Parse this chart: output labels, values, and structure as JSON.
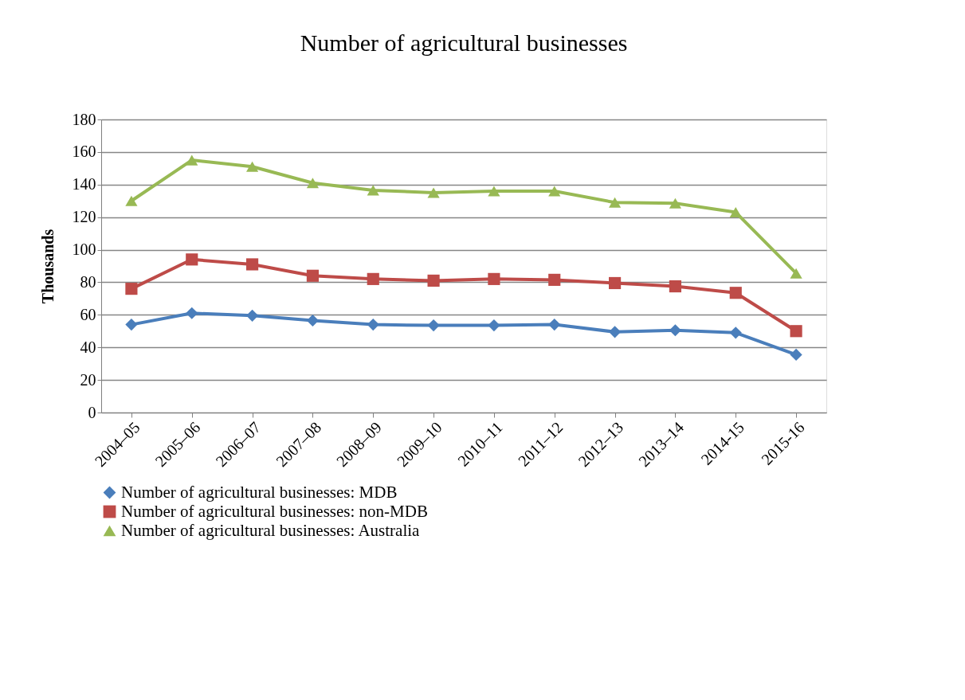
{
  "chart_data": {
    "type": "line",
    "title": "Number of agricultural businesses",
    "ylabel": "Thousands",
    "categories": [
      "2004–05",
      "2005–06",
      "2006–07",
      "2007–08",
      "2008–09",
      "2009–10",
      "2010–11",
      "2011–12",
      "2012–13",
      "2013–14",
      "2014-15",
      "2015-16"
    ],
    "series": [
      {
        "name": "Number of agricultural businesses: MDB",
        "color": "#4a7ebb",
        "marker": "diamond",
        "values": [
          54,
          61,
          59.5,
          56.5,
          54,
          53.5,
          53.5,
          54,
          49.5,
          50.5,
          49,
          35.5
        ]
      },
      {
        "name": "Number of agricultural businesses: non-MDB",
        "color": "#be4b48",
        "marker": "square",
        "values": [
          76,
          94,
          91,
          84,
          82,
          81,
          82,
          81.5,
          79.5,
          77.5,
          73.5,
          50
        ]
      },
      {
        "name": "Number of agricultural businesses: Australia",
        "color": "#98b954",
        "marker": "triangle",
        "values": [
          130,
          155,
          151,
          141,
          136.5,
          135,
          136,
          136,
          129,
          128.5,
          123,
          85.5
        ]
      }
    ],
    "ylim": [
      0,
      180
    ],
    "yticks": [
      0,
      20,
      40,
      60,
      80,
      100,
      120,
      140,
      160,
      180
    ],
    "grid": "y",
    "legend": "bottom",
    "line_style": "solid"
  }
}
